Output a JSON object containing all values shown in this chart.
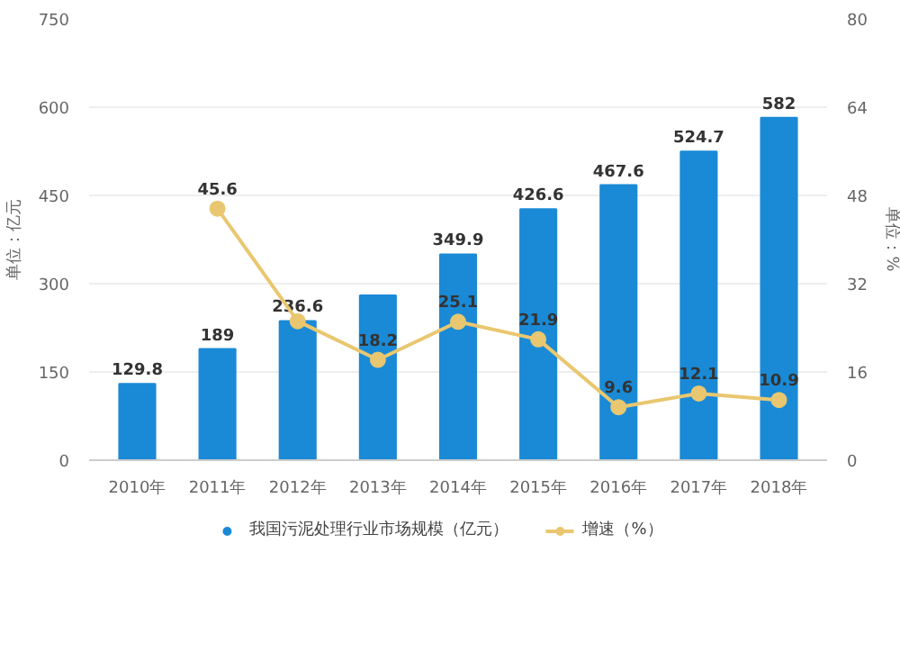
{
  "chart_data": {
    "type": "bar",
    "categories": [
      "2010年",
      "2011年",
      "2012年",
      "2013年",
      "2014年",
      "2015年",
      "2016年",
      "2017年",
      "2018年"
    ],
    "series": [
      {
        "name": "我国污泥处理行业市场规模（亿元）",
        "color": "#1a8ad6",
        "values": [
          129.8,
          189,
          236.6,
          280,
          349.9,
          426.6,
          467.6,
          524.7,
          582
        ],
        "value_labels": [
          "129.8",
          "189",
          "236.6",
          null,
          "349.9",
          "426.6",
          "467.6",
          "524.7",
          "582"
        ]
      },
      {
        "name": "增速（%）",
        "type": "line",
        "axis": "y2",
        "color": "#e9c770",
        "marker": "circle",
        "values": [
          null,
          45.6,
          25.2,
          18.2,
          25.1,
          21.9,
          9.6,
          12.1,
          10.9
        ],
        "value_labels": [
          null,
          "45.6",
          null,
          "18.2",
          "25.1",
          "21.9",
          "9.6",
          "12.1",
          "10.9"
        ]
      }
    ],
    "ylabel": "单位：亿元",
    "y2label": "单位：%",
    "ylim": [
      0,
      750
    ],
    "yticks": [
      0,
      150,
      300,
      450,
      600,
      750
    ],
    "y2lim": [
      0,
      80
    ],
    "y2ticks": [
      0,
      16,
      32,
      48,
      64,
      80
    ],
    "grid": "y",
    "legend": "bottom"
  }
}
